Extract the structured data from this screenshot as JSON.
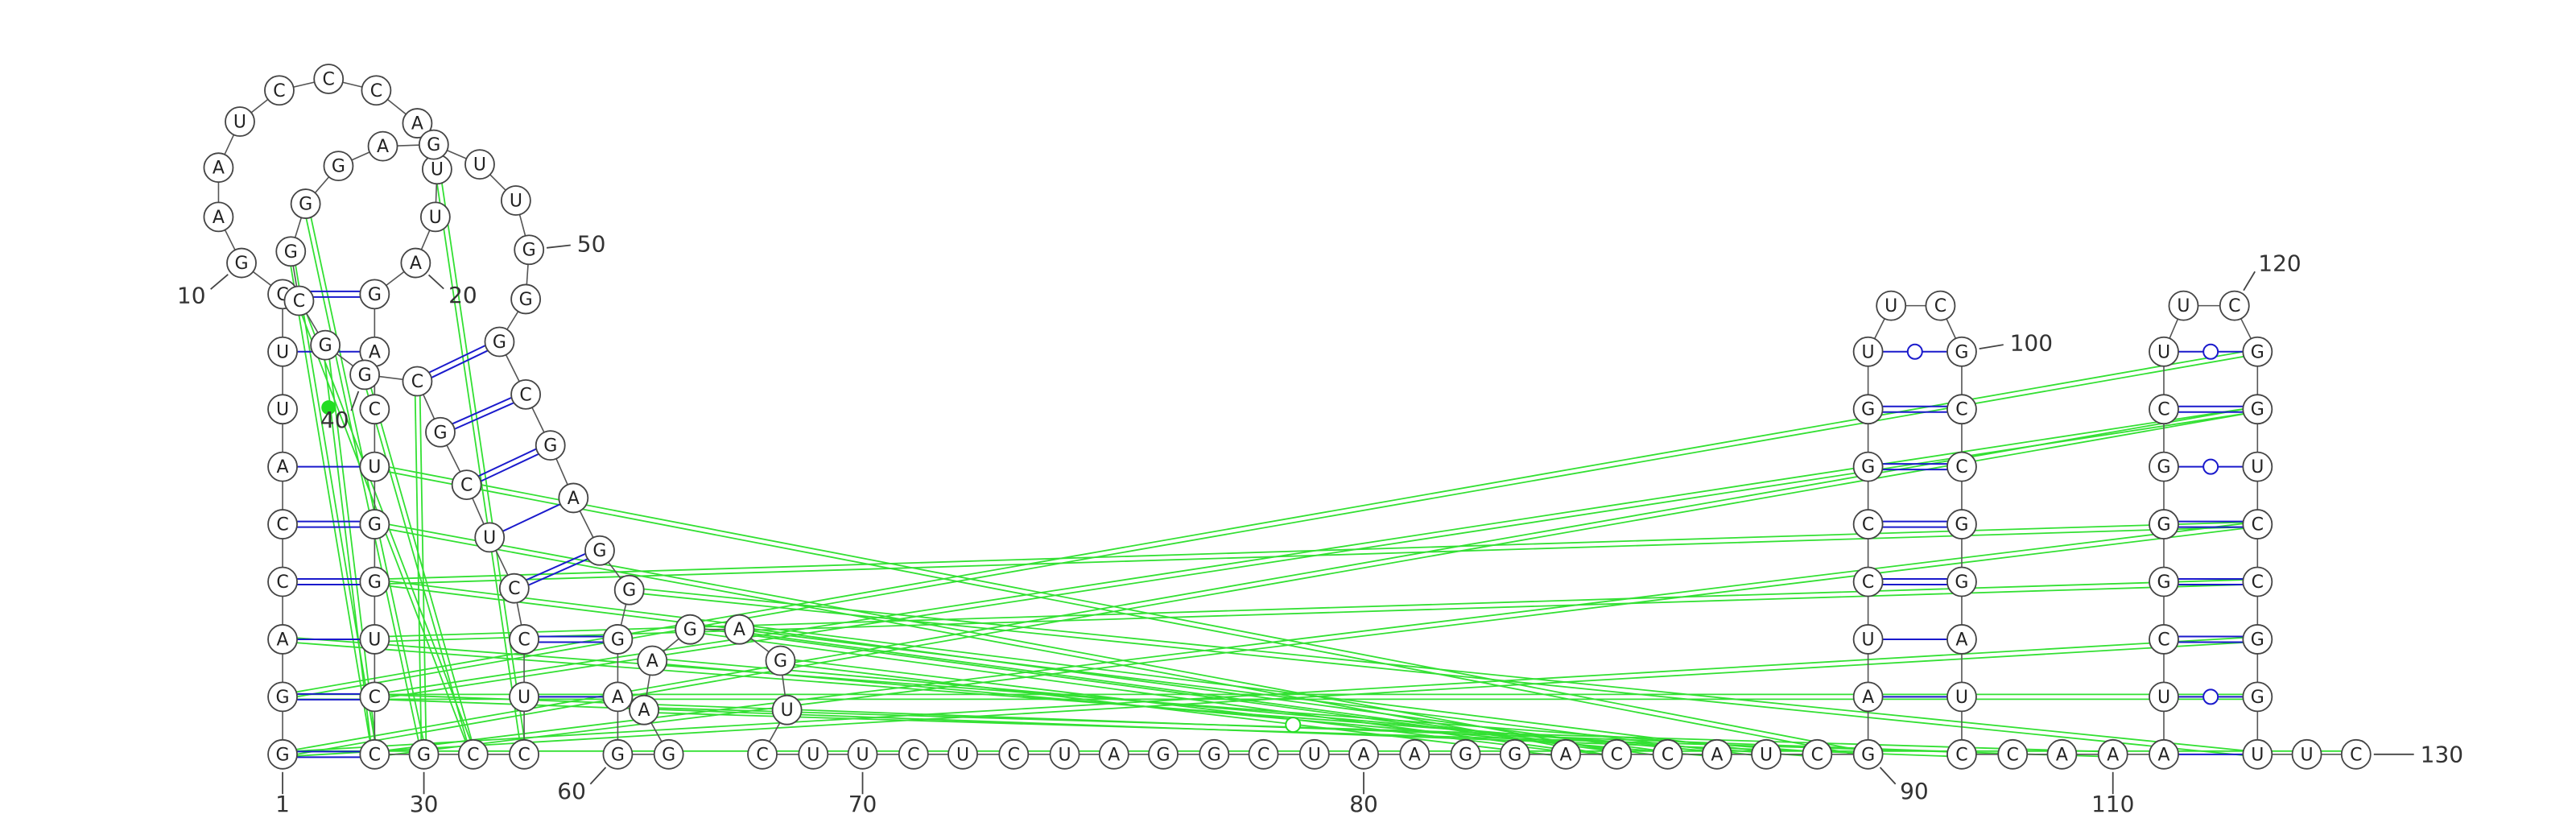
{
  "sequence": [
    "G",
    "G",
    "A",
    "C",
    "C",
    "A",
    "U",
    "U",
    "C",
    "G",
    "A",
    "A",
    "U",
    "C",
    "C",
    "C",
    "A",
    "U",
    "U",
    "A",
    "G",
    "A",
    "C",
    "U",
    "G",
    "G",
    "U",
    "C",
    "C",
    "G",
    "C",
    "C",
    "U",
    "C",
    "C",
    "U",
    "C",
    "G",
    "C",
    "G",
    "G",
    "C",
    "G",
    "G",
    "G",
    "A",
    "G",
    "U",
    "U",
    "G",
    "G",
    "G",
    "C",
    "G",
    "A",
    "G",
    "G",
    "G",
    "A",
    "G",
    "G",
    "A",
    "A",
    "G",
    "A",
    "G",
    "U",
    "C",
    "U",
    "U",
    "C",
    "U",
    "C",
    "U",
    "A",
    "G",
    "G",
    "C",
    "U",
    "A",
    "A",
    "G",
    "G",
    "A",
    "C",
    "C",
    "A",
    "U",
    "C",
    "G",
    "A",
    "U",
    "C",
    "C",
    "G",
    "G",
    "U",
    "U",
    "C",
    "G",
    "C",
    "C",
    "G",
    "G",
    "A",
    "U",
    "C",
    "C",
    "A",
    "A",
    "A",
    "U",
    "C",
    "G",
    "G",
    "G",
    "C",
    "U",
    "U",
    "C",
    "G",
    "G",
    "U",
    "C",
    "C",
    "G",
    "G",
    "U",
    "U",
    "C"
  ],
  "position_labels": [
    1,
    10,
    20,
    30,
    40,
    50,
    60,
    70,
    80,
    90,
    100,
    110,
    120,
    130
  ]
}
